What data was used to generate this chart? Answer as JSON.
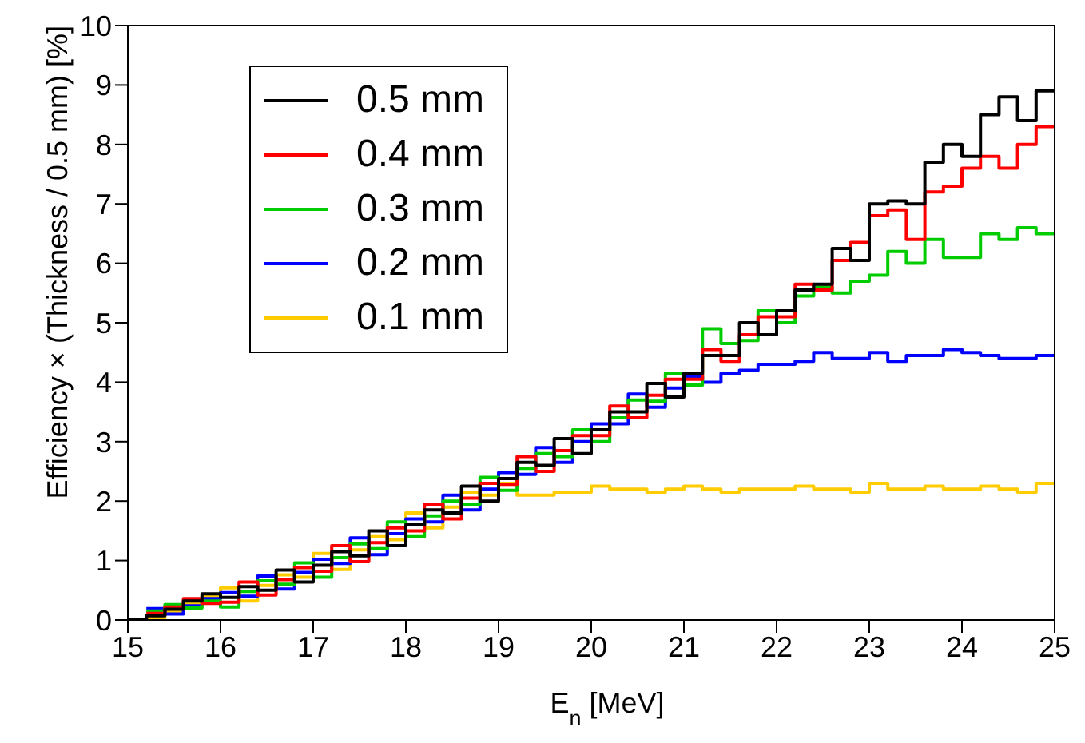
{
  "chart_data": {
    "type": "step",
    "xlabel": "E$_{n}$  [MeV]",
    "ylabel": "Efficiency × (Thickness / 0.5 mm)  [%]",
    "x": [
      15.0,
      15.2,
      15.4,
      15.6,
      15.8,
      16.0,
      16.2,
      16.4,
      16.6,
      16.8,
      17.0,
      17.2,
      17.4,
      17.6,
      17.8,
      18.0,
      18.2,
      18.4,
      18.6,
      18.8,
      19.0,
      19.2,
      19.4,
      19.6,
      19.8,
      20.0,
      20.2,
      20.4,
      20.6,
      20.8,
      21.0,
      21.2,
      21.4,
      21.6,
      21.8,
      22.0,
      22.2,
      22.4,
      22.6,
      22.8,
      23.0,
      23.2,
      23.4,
      23.6,
      23.8,
      24.0,
      24.2,
      24.4,
      24.6,
      24.8,
      25.0
    ],
    "series": [
      {
        "name": "0.5 mm",
        "color": "#000000",
        "values": [
          0.0,
          0.07,
          0.18,
          0.32,
          0.44,
          0.38,
          0.56,
          0.5,
          0.84,
          0.64,
          0.92,
          1.15,
          1.08,
          1.5,
          1.25,
          1.6,
          1.85,
          1.8,
          2.25,
          2.0,
          2.38,
          2.65,
          2.6,
          3.05,
          2.8,
          3.2,
          3.5,
          3.5,
          3.98,
          3.75,
          4.15,
          4.45,
          4.45,
          5.0,
          4.8,
          5.2,
          5.55,
          5.65,
          6.25,
          6.05,
          7.0,
          7.05,
          7.0,
          7.7,
          8.0,
          7.8,
          8.5,
          8.8,
          8.4,
          8.9,
          8.9
        ]
      },
      {
        "name": "0.4 mm",
        "color": "#ff0000",
        "values": [
          null,
          0.11,
          0.22,
          0.36,
          0.28,
          0.3,
          0.64,
          0.42,
          0.68,
          0.88,
          0.82,
          1.25,
          0.98,
          1.3,
          1.55,
          1.5,
          1.95,
          1.7,
          2.05,
          2.3,
          2.28,
          2.75,
          2.5,
          2.85,
          3.1,
          3.1,
          3.6,
          3.4,
          3.78,
          4.05,
          4.05,
          4.55,
          4.35,
          4.8,
          5.1,
          5.1,
          5.65,
          5.55,
          6.05,
          6.35,
          6.8,
          6.9,
          6.4,
          7.2,
          7.3,
          7.6,
          7.8,
          7.6,
          8.0,
          8.3,
          8.3
        ]
      },
      {
        "name": "0.3 mm",
        "color": "#00cc00",
        "values": [
          null,
          0.15,
          0.26,
          0.2,
          0.32,
          0.22,
          0.48,
          0.66,
          0.6,
          0.96,
          0.72,
          1.05,
          1.28,
          1.2,
          1.65,
          1.4,
          1.75,
          2.0,
          1.95,
          2.4,
          2.18,
          2.55,
          2.8,
          2.75,
          3.2,
          3.0,
          3.4,
          3.7,
          3.68,
          4.15,
          3.95,
          4.9,
          4.65,
          4.7,
          5.2,
          5.0,
          5.45,
          5.6,
          5.5,
          5.7,
          5.8,
          6.2,
          6.0,
          6.4,
          6.1,
          6.1,
          6.5,
          6.4,
          6.6,
          6.5,
          6.5
        ]
      },
      {
        "name": "0.2 mm",
        "color": "#0000ff",
        "values": [
          null,
          0.19,
          0.1,
          0.24,
          0.36,
          0.46,
          0.4,
          0.74,
          0.52,
          0.8,
          1.02,
          0.95,
          1.38,
          1.1,
          1.45,
          1.7,
          1.65,
          2.1,
          1.85,
          2.2,
          2.48,
          2.45,
          2.9,
          2.65,
          3.0,
          3.3,
          3.3,
          3.8,
          3.58,
          3.9,
          4.1,
          4.0,
          4.15,
          4.2,
          4.3,
          4.3,
          4.35,
          4.5,
          4.4,
          4.4,
          4.5,
          4.35,
          4.45,
          4.45,
          4.55,
          4.5,
          4.45,
          4.4,
          4.4,
          4.45,
          4.45
        ]
      },
      {
        "name": "0.1 mm",
        "color": "#ffcc00",
        "values": [
          null,
          0.03,
          0.14,
          0.28,
          0.4,
          0.54,
          0.32,
          0.58,
          0.76,
          0.72,
          1.12,
          0.85,
          1.18,
          1.4,
          1.35,
          1.8,
          1.55,
          1.9,
          2.15,
          2.1,
          2.3,
          2.1,
          2.1,
          2.15,
          2.15,
          2.25,
          2.2,
          2.2,
          2.15,
          2.2,
          2.25,
          2.2,
          2.15,
          2.2,
          2.2,
          2.2,
          2.25,
          2.2,
          2.2,
          2.15,
          2.3,
          2.2,
          2.2,
          2.25,
          2.2,
          2.2,
          2.25,
          2.2,
          2.15,
          2.3,
          2.3
        ]
      }
    ],
    "xlim": [
      15,
      25
    ],
    "xticks": [
      15,
      16,
      17,
      18,
      19,
      20,
      21,
      22,
      23,
      24,
      25
    ],
    "ylim": [
      0,
      10
    ],
    "yticks": [
      0,
      1,
      2,
      3,
      4,
      5,
      6,
      7,
      8,
      9,
      10
    ],
    "legend": "top left",
    "grid": false,
    "marker": "none",
    "line_style": "solid"
  }
}
